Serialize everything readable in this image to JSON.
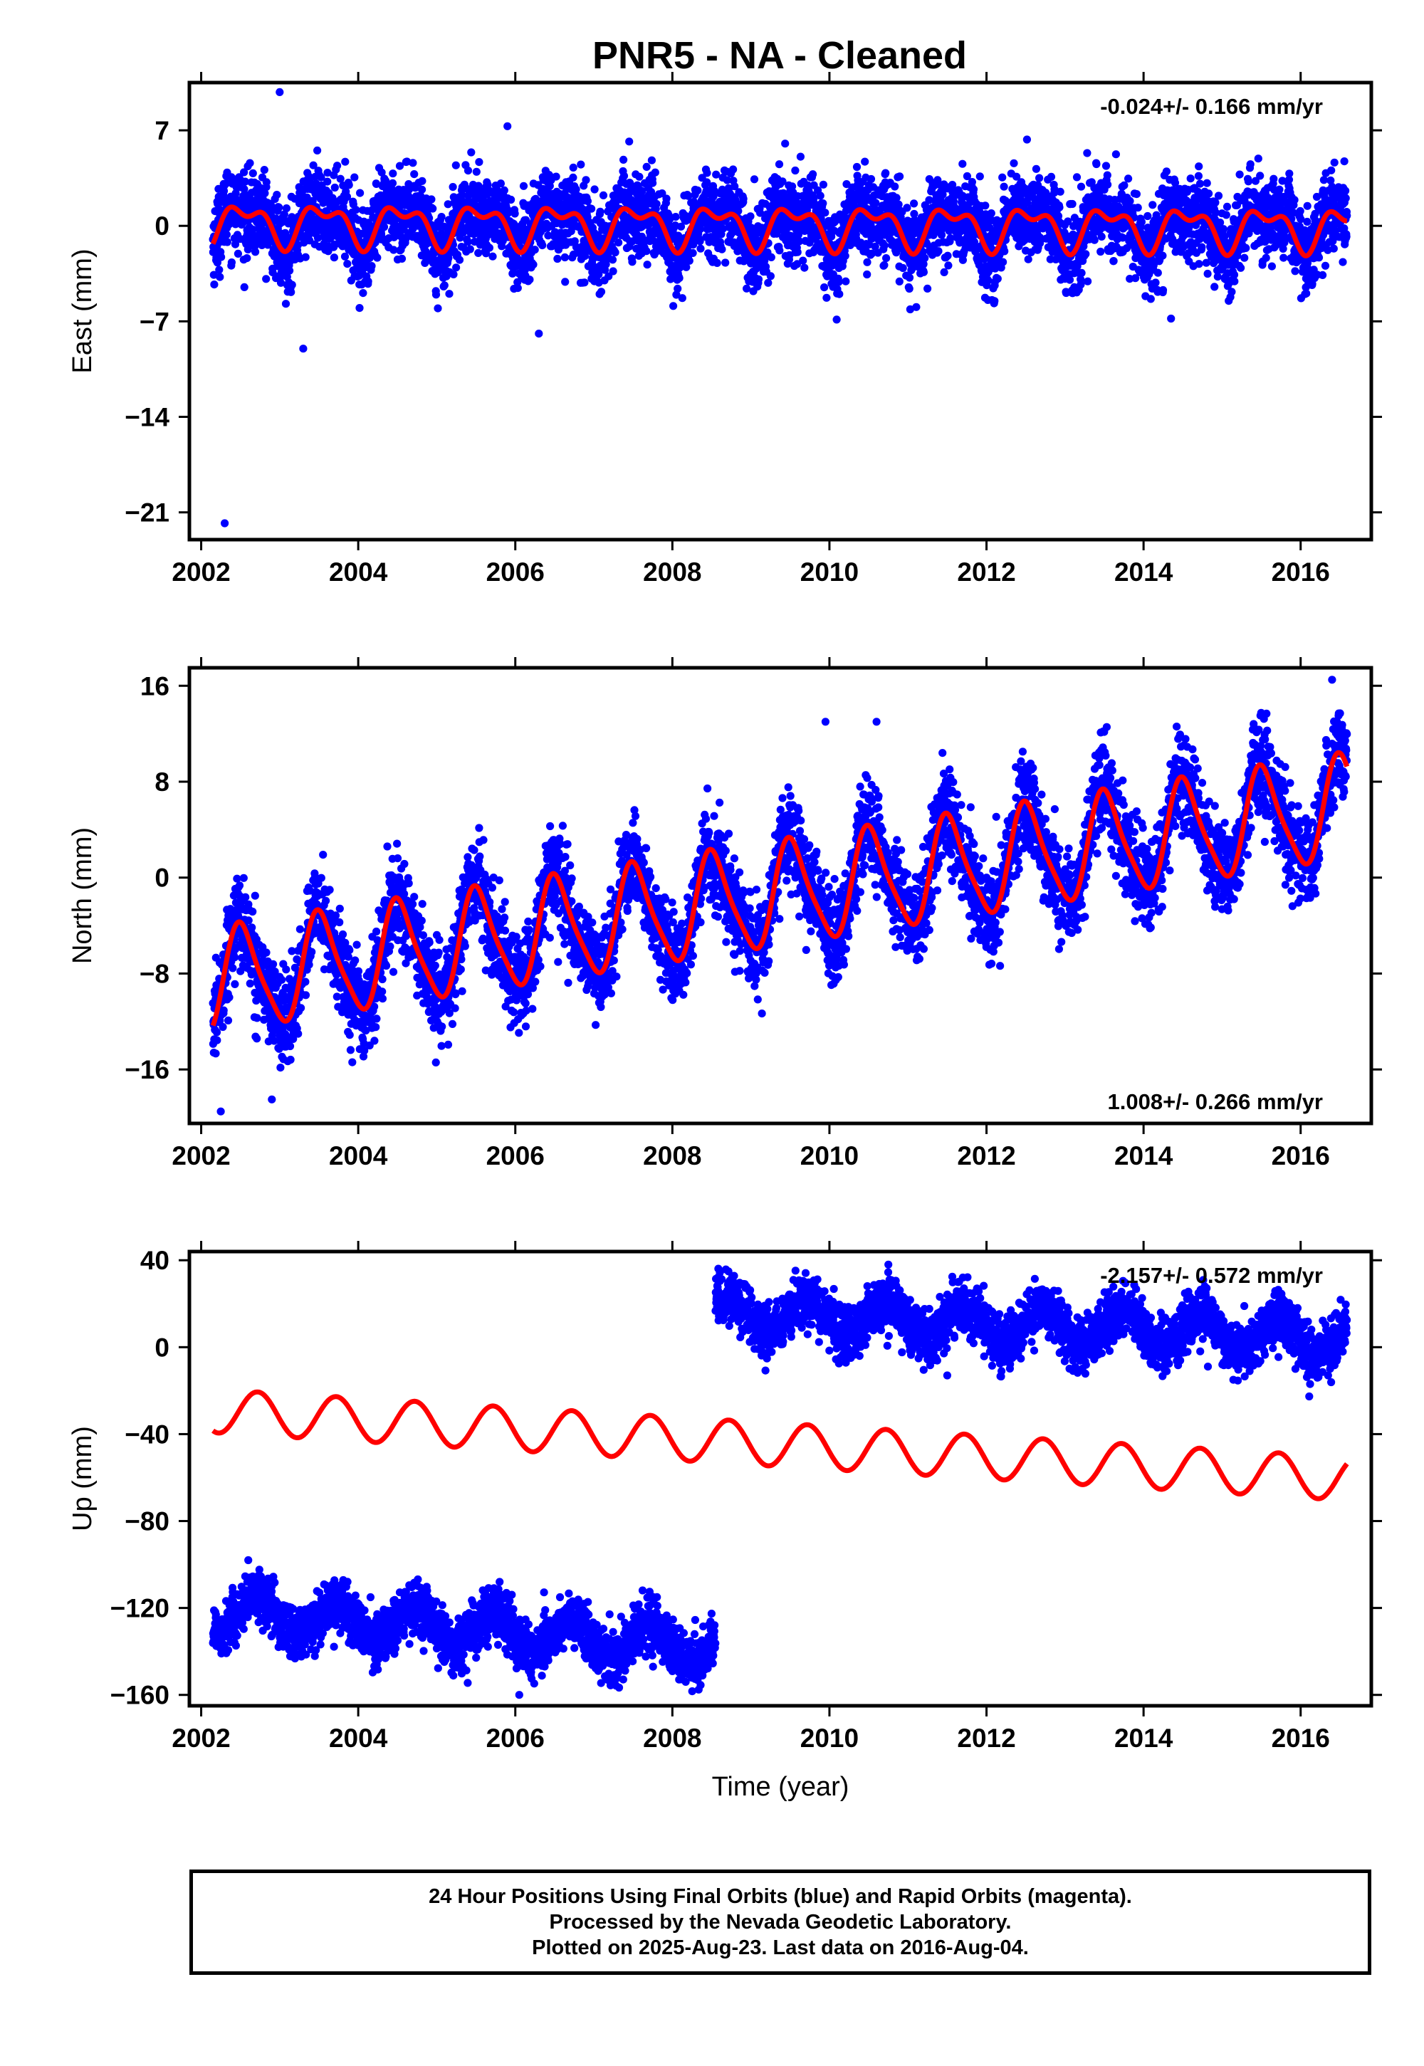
{
  "chart_title": "PNR5  - NA - Cleaned",
  "footer": {
    "lines": [
      "24 Hour Positions Using Final Orbits (blue) and Rapid Orbits (magenta).",
      "Processed by the Nevada Geodetic Laboratory.",
      "Plotted on 2025-Aug-23. Last data on 2016-Aug-04."
    ]
  },
  "colors": {
    "data": "#0000ff",
    "model": "#ff0000",
    "axes": "#000000"
  },
  "chart_data": [
    {
      "type": "scatter",
      "title": "PNR5  - NA - Cleaned",
      "xlabel": "",
      "ylabel": "East (mm)",
      "xlim": [
        2001.85,
        2016.9
      ],
      "ylim": [
        -23,
        10.5
      ],
      "x_ticks": [
        2002,
        2004,
        2006,
        2008,
        2010,
        2012,
        2014,
        2016
      ],
      "y_ticks": [
        7,
        0,
        -7,
        -14,
        -21
      ],
      "y_tick_labels": [
        "7",
        "0",
        "−7",
        "−14",
        "−21"
      ],
      "annotation": "-0.024+/- 0.166 mm/yr",
      "annotation_position": "top-right",
      "data_range": [
        2002.15,
        2016.59
      ],
      "model": {
        "offset": 0.0,
        "rate": -0.024,
        "t0": 2009.4,
        "annual_amp": 1.3,
        "annual_phase_year": 0.55,
        "semiannual_amp": 0.75,
        "semiannual_phase_year": 0.2
      },
      "scatter_sd": 1.5,
      "outliers": [
        {
          "x": 2002.3,
          "y": -21.8
        },
        {
          "x": 2003.3,
          "y": -9.0
        },
        {
          "x": 2003.0,
          "y": 9.8
        },
        {
          "x": 2006.3,
          "y": -7.9
        },
        {
          "x": 2014.35,
          "y": -6.8
        },
        {
          "x": 2005.9,
          "y": 7.3
        }
      ]
    },
    {
      "type": "scatter",
      "xlabel": "",
      "ylabel": "North (mm)",
      "xlim": [
        2001.85,
        2016.9
      ],
      "ylim": [
        -20.5,
        17.5
      ],
      "x_ticks": [
        2002,
        2004,
        2006,
        2008,
        2010,
        2012,
        2014,
        2016
      ],
      "y_ticks": [
        16,
        8,
        0,
        -8,
        -16
      ],
      "y_tick_labels": [
        "16",
        "8",
        "0",
        "−8",
        "−16"
      ],
      "annotation": "1.008+/- 0.266 mm/yr",
      "annotation_position": "bottom-right",
      "data_range": [
        2002.15,
        2016.59
      ],
      "model": {
        "offset": -1.4,
        "rate": 1.008,
        "t0": 2009.4,
        "annual_amp": 4.2,
        "annual_phase_year": 0.52,
        "semiannual_amp": 0.8,
        "semiannual_phase_year": 0.3
      },
      "scatter_sd": 1.9,
      "outliers": [
        {
          "x": 2002.25,
          "y": -19.5
        },
        {
          "x": 2002.9,
          "y": -18.5
        },
        {
          "x": 2016.4,
          "y": 16.5
        },
        {
          "x": 2009.95,
          "y": 13.0
        },
        {
          "x": 2010.6,
          "y": 13.0
        }
      ]
    },
    {
      "type": "scatter",
      "xlabel": "Time (year)",
      "ylabel": "Up (mm)",
      "xlim": [
        2001.85,
        2016.9
      ],
      "ylim": [
        -165,
        44
      ],
      "x_ticks": [
        2002,
        2004,
        2006,
        2008,
        2010,
        2012,
        2014,
        2016
      ],
      "x_tick_labels": [
        "2002",
        "2004",
        "2006",
        "2008",
        "2010",
        "2012",
        "2014",
        "2016"
      ],
      "y_ticks": [
        40,
        0,
        -40,
        -80,
        -120,
        -160
      ],
      "y_tick_labels": [
        "40",
        "0",
        "−40",
        "−80",
        "−120",
        "−160"
      ],
      "annotation": "-2.157+/- 0.572 mm/yr",
      "annotation_position": "top-right",
      "model": {
        "offset": -45.0,
        "rate": -2.157,
        "t0": 2009.4,
        "annual_amp": 10.0,
        "annual_phase_year": 0.72,
        "semiannual_amp": 0.0,
        "semiannual_phase_year": 0.0
      },
      "segments": [
        {
          "from": 2002.15,
          "to": 2008.55,
          "offset": -130.0,
          "rate": -2.5,
          "t0": 2005.35,
          "annual_amp": 8.0,
          "annual_phase_year": 0.72,
          "sd": 6.0
        },
        {
          "from": 2008.55,
          "to": 2016.59,
          "offset": 10.0,
          "rate": -1.5,
          "t0": 2012.6,
          "annual_amp": 8.0,
          "annual_phase_year": 0.72,
          "sd": 6.0
        }
      ],
      "outliers": [
        {
          "x": 2002.6,
          "y": -98
        },
        {
          "x": 2005.8,
          "y": -108
        },
        {
          "x": 2006.05,
          "y": -160
        },
        {
          "x": 2010.75,
          "y": 38
        },
        {
          "x": 2011.5,
          "y": -13
        },
        {
          "x": 2016.35,
          "y": -13
        }
      ]
    }
  ]
}
